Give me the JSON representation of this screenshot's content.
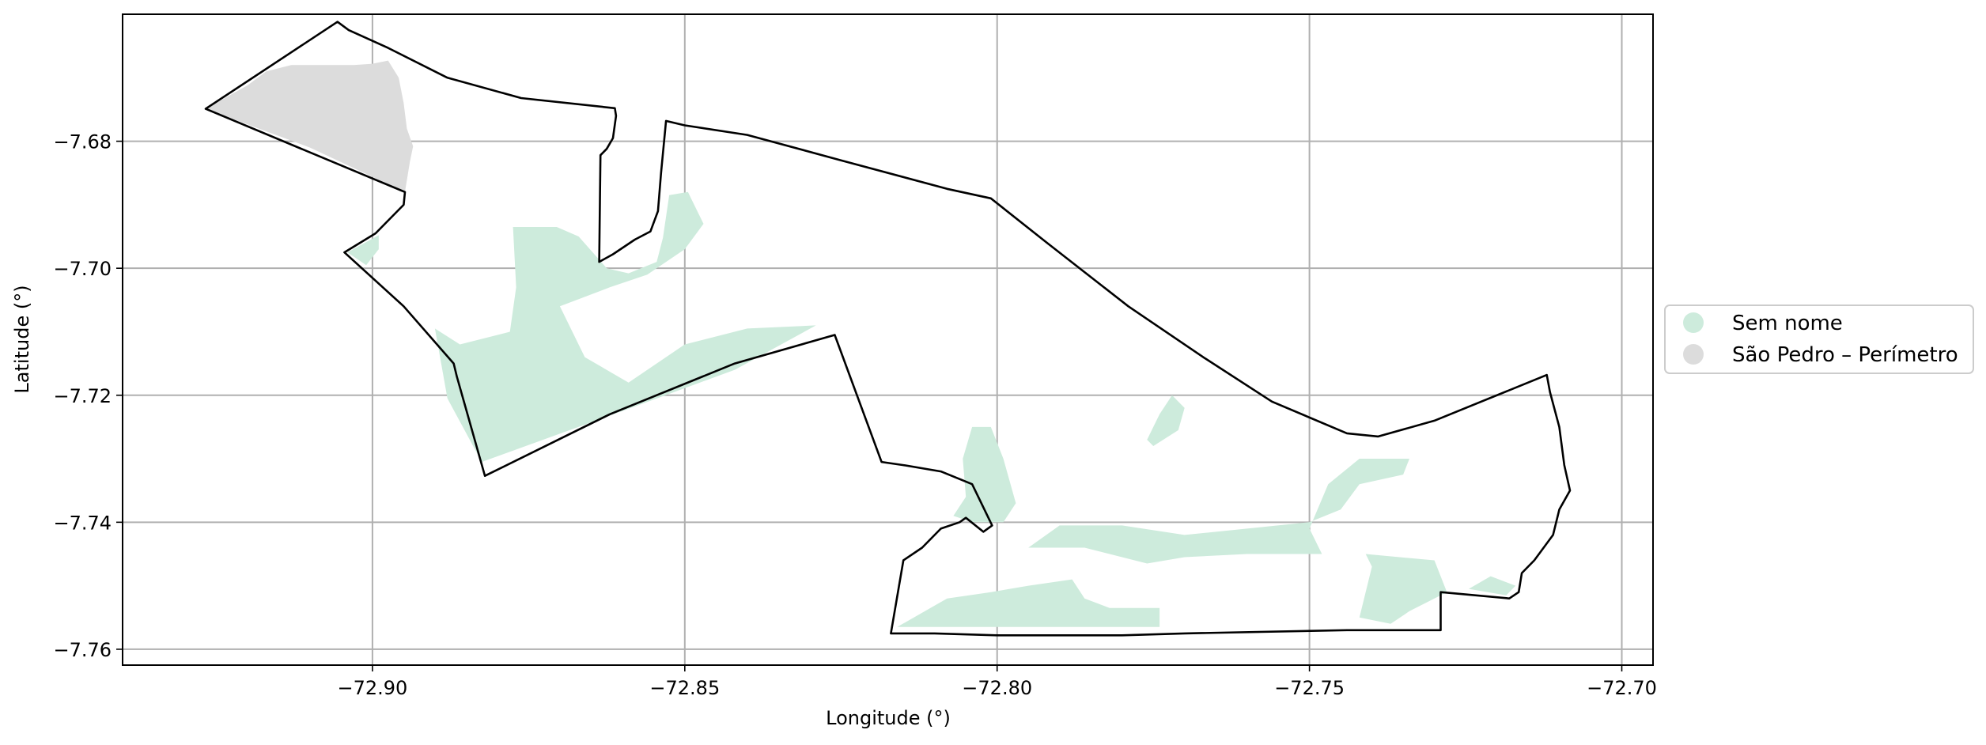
{
  "chart_data": {
    "type": "map",
    "xlabel": "Longitude (°)",
    "ylabel": "Latitude (°)",
    "xlim": [
      -72.94,
      -72.695
    ],
    "ylim": [
      -7.7625,
      -7.66
    ],
    "grid": true,
    "legend_position": "right, outside plot",
    "x_ticks": [
      {
        "value": -72.9,
        "label": "−72.90"
      },
      {
        "value": -72.85,
        "label": "−72.85"
      },
      {
        "value": -72.8,
        "label": "−72.80"
      },
      {
        "value": -72.75,
        "label": "−72.75"
      },
      {
        "value": -72.7,
        "label": "−72.70"
      }
    ],
    "y_ticks": [
      {
        "value": -7.68,
        "label": "−7.68"
      },
      {
        "value": -7.7,
        "label": "−7.70"
      },
      {
        "value": -7.72,
        "label": "−7.72"
      },
      {
        "value": -7.74,
        "label": "−7.74"
      },
      {
        "value": -7.76,
        "label": "−7.76"
      }
    ],
    "legend": [
      {
        "label": "Sem nome",
        "color": "#cdebdc"
      },
      {
        "label": "São Pedro – Perímetro",
        "color": "#dcdcdc"
      }
    ],
    "boundary": {
      "stroke": "#000000",
      "points": [
        [
          -72.9056,
          -7.6612
        ],
        [
          -72.9038,
          -7.6625
        ],
        [
          -72.8975,
          -7.6653
        ],
        [
          -72.888,
          -7.67
        ],
        [
          -72.8762,
          -7.6732
        ],
        [
          -72.8612,
          -7.6748
        ],
        [
          -72.861,
          -7.676
        ],
        [
          -72.8615,
          -7.6795
        ],
        [
          -72.8625,
          -7.6812
        ],
        [
          -72.8635,
          -7.6822
        ],
        [
          -72.8637,
          -7.699
        ],
        [
          -72.8615,
          -7.6978
        ],
        [
          -72.858,
          -7.6955
        ],
        [
          -72.8555,
          -7.6942
        ],
        [
          -72.8543,
          -7.691
        ],
        [
          -72.8538,
          -7.685
        ],
        [
          -72.853,
          -7.6768
        ],
        [
          -72.85,
          -7.6775
        ],
        [
          -72.84,
          -7.679
        ],
        [
          -72.825,
          -7.683
        ],
        [
          -72.808,
          -7.6875
        ],
        [
          -72.801,
          -7.689
        ],
        [
          -72.792,
          -7.696
        ],
        [
          -72.779,
          -7.706
        ],
        [
          -72.767,
          -7.714
        ],
        [
          -72.756,
          -7.721
        ],
        [
          -72.744,
          -7.726
        ],
        [
          -72.739,
          -7.7265
        ],
        [
          -72.73,
          -7.724
        ],
        [
          -72.712,
          -7.7168
        ],
        [
          -72.7115,
          -7.7195
        ],
        [
          -72.71,
          -7.725
        ],
        [
          -72.7092,
          -7.731
        ],
        [
          -72.7083,
          -7.735
        ],
        [
          -72.71,
          -7.738
        ],
        [
          -72.711,
          -7.742
        ],
        [
          -72.714,
          -7.746
        ],
        [
          -72.716,
          -7.748
        ],
        [
          -72.7165,
          -7.751
        ],
        [
          -72.718,
          -7.752
        ],
        [
          -72.729,
          -7.751
        ],
        [
          -72.729,
          -7.757
        ],
        [
          -72.744,
          -7.757
        ],
        [
          -72.77,
          -7.7575
        ],
        [
          -72.78,
          -7.7578
        ],
        [
          -72.8,
          -7.7578
        ],
        [
          -72.81,
          -7.7575
        ],
        [
          -72.817,
          -7.7575
        ],
        [
          -72.815,
          -7.746
        ],
        [
          -72.812,
          -7.744
        ],
        [
          -72.809,
          -7.741
        ],
        [
          -72.806,
          -7.74
        ],
        [
          -72.805,
          -7.7393
        ],
        [
          -72.8022,
          -7.7415
        ],
        [
          -72.8008,
          -7.7405
        ],
        [
          -72.804,
          -7.734
        ],
        [
          -72.809,
          -7.732
        ],
        [
          -72.815,
          -7.731
        ],
        [
          -72.8185,
          -7.7305
        ],
        [
          -72.826,
          -7.7105
        ],
        [
          -72.842,
          -7.715
        ],
        [
          -72.862,
          -7.723
        ],
        [
          -72.882,
          -7.7327
        ],
        [
          -72.8865,
          -7.717
        ],
        [
          -72.887,
          -7.715
        ],
        [
          -72.895,
          -7.706
        ],
        [
          -72.9045,
          -7.6975
        ],
        [
          -72.8995,
          -7.6945
        ],
        [
          -72.895,
          -7.69
        ],
        [
          -72.8948,
          -7.688
        ],
        [
          -72.9267,
          -7.6749
        ],
        [
          -72.913,
          -7.666
        ],
        [
          -72.9056,
          -7.6612
        ]
      ]
    },
    "regions": [
      {
        "name": "São Pedro – Perímetro",
        "fill": "#dcdcdc",
        "points": [
          [
            -72.9267,
            -7.6749
          ],
          [
            -72.92,
            -7.6712
          ],
          [
            -72.917,
            -7.669
          ],
          [
            -72.913,
            -7.668
          ],
          [
            -72.903,
            -7.668
          ],
          [
            -72.9,
            -7.6678
          ],
          [
            -72.8975,
            -7.6673
          ],
          [
            -72.8958,
            -7.67
          ],
          [
            -72.895,
            -7.674
          ],
          [
            -72.8945,
            -7.678
          ],
          [
            -72.8935,
            -7.6808
          ],
          [
            -72.894,
            -7.6832
          ],
          [
            -72.8948,
            -7.688
          ],
          [
            -72.91,
            -7.681
          ],
          [
            -72.9267,
            -7.6749
          ]
        ]
      },
      {
        "name": "Sem nome",
        "fill": "#cdebdc",
        "points": [
          [
            -72.8825,
            -7.7305
          ],
          [
            -72.888,
            -7.7205
          ],
          [
            -72.89,
            -7.7095
          ],
          [
            -72.886,
            -7.712
          ],
          [
            -72.878,
            -7.71
          ],
          [
            -72.877,
            -7.703
          ],
          [
            -72.8775,
            -7.6935
          ],
          [
            -72.8705,
            -7.6935
          ],
          [
            -72.867,
            -7.695
          ],
          [
            -72.8625,
            -7.7
          ],
          [
            -72.859,
            -7.7008
          ],
          [
            -72.8545,
            -7.699
          ],
          [
            -72.8535,
            -7.6952
          ],
          [
            -72.8525,
            -7.6885
          ],
          [
            -72.8495,
            -7.688
          ],
          [
            -72.847,
            -7.693
          ],
          [
            -72.85,
            -7.697
          ],
          [
            -72.856,
            -7.701
          ],
          [
            -72.862,
            -7.703
          ],
          [
            -72.87,
            -7.706
          ],
          [
            -72.866,
            -7.714
          ],
          [
            -72.859,
            -7.718
          ],
          [
            -72.85,
            -7.712
          ],
          [
            -72.84,
            -7.7095
          ],
          [
            -72.829,
            -7.709
          ],
          [
            -72.842,
            -7.716
          ],
          [
            -72.86,
            -7.7225
          ],
          [
            -72.8825,
            -7.7305
          ]
        ]
      },
      {
        "name": "Sem nome",
        "fill": "#cdebdc",
        "points": [
          [
            -72.904,
            -7.6975
          ],
          [
            -72.899,
            -7.6948
          ],
          [
            -72.899,
            -7.697
          ],
          [
            -72.901,
            -7.6995
          ]
        ]
      },
      {
        "name": "Sem nome",
        "fill": "#cdebdc",
        "points": [
          [
            -72.816,
            -7.7565
          ],
          [
            -72.808,
            -7.752
          ],
          [
            -72.801,
            -7.751
          ],
          [
            -72.795,
            -7.75
          ],
          [
            -72.788,
            -7.749
          ],
          [
            -72.786,
            -7.752
          ],
          [
            -72.782,
            -7.7535
          ],
          [
            -72.774,
            -7.7535
          ],
          [
            -72.774,
            -7.7565
          ],
          [
            -72.79,
            -7.7565
          ],
          [
            -72.816,
            -7.7565
          ]
        ]
      },
      {
        "name": "Sem nome",
        "fill": "#cdebdc",
        "points": [
          [
            -72.807,
            -7.739
          ],
          [
            -72.805,
            -7.736
          ],
          [
            -72.8055,
            -7.73
          ],
          [
            -72.804,
            -7.725
          ],
          [
            -72.801,
            -7.725
          ],
          [
            -72.799,
            -7.73
          ],
          [
            -72.797,
            -7.737
          ],
          [
            -72.799,
            -7.74
          ],
          [
            -72.804,
            -7.74
          ]
        ]
      },
      {
        "name": "Sem nome",
        "fill": "#cdebdc",
        "points": [
          [
            -72.795,
            -7.744
          ],
          [
            -72.79,
            -7.7405
          ],
          [
            -72.78,
            -7.7405
          ],
          [
            -72.77,
            -7.742
          ],
          [
            -72.76,
            -7.741
          ],
          [
            -72.75,
            -7.74
          ],
          [
            -72.745,
            -7.738
          ],
          [
            -72.742,
            -7.734
          ],
          [
            -72.735,
            -7.7325
          ],
          [
            -72.734,
            -7.73
          ],
          [
            -72.742,
            -7.73
          ],
          [
            -72.747,
            -7.734
          ],
          [
            -72.75,
            -7.741
          ],
          [
            -72.748,
            -7.745
          ],
          [
            -72.76,
            -7.745
          ],
          [
            -72.77,
            -7.7455
          ],
          [
            -72.776,
            -7.7465
          ],
          [
            -72.78,
            -7.7455
          ],
          [
            -72.786,
            -7.744
          ],
          [
            -72.795,
            -7.744
          ]
        ]
      },
      {
        "name": "Sem nome",
        "fill": "#cdebdc",
        "points": [
          [
            -72.775,
            -7.728
          ],
          [
            -72.771,
            -7.7255
          ],
          [
            -72.77,
            -7.722
          ],
          [
            -72.772,
            -7.72
          ],
          [
            -72.774,
            -7.723
          ],
          [
            -72.776,
            -7.727
          ]
        ]
      },
      {
        "name": "Sem nome",
        "fill": "#cdebdc",
        "points": [
          [
            -72.742,
            -7.755
          ],
          [
            -72.74,
            -7.747
          ],
          [
            -72.741,
            -7.745
          ],
          [
            -72.73,
            -7.746
          ],
          [
            -72.728,
            -7.751
          ],
          [
            -72.734,
            -7.754
          ],
          [
            -72.737,
            -7.756
          ],
          [
            -72.742,
            -7.755
          ]
        ]
      },
      {
        "name": "Sem nome",
        "fill": "#cdebdc",
        "points": [
          [
            -72.7245,
            -7.7505
          ],
          [
            -72.7185,
            -7.7515
          ],
          [
            -72.717,
            -7.75
          ],
          [
            -72.721,
            -7.7485
          ]
        ]
      }
    ]
  }
}
